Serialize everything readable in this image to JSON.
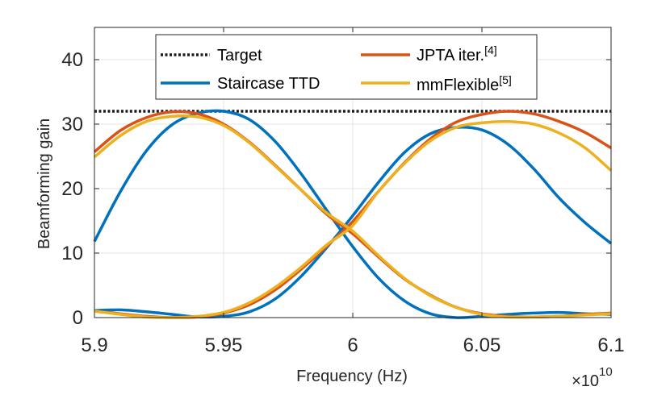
{
  "chart_data": {
    "type": "line",
    "title": "",
    "xlabel": "Frequency (Hz)",
    "ylabel": "Beamforming gain",
    "x_exponent_base": "×10",
    "x_exponent_power": "10",
    "xlim": [
      5.9,
      6.1
    ],
    "ylim": [
      0,
      45
    ],
    "xticks": [
      5.9,
      5.95,
      6.0,
      6.05,
      6.1
    ],
    "xtick_labels": [
      "5.9",
      "5.95",
      "6",
      "6.05",
      "6.1"
    ],
    "yticks": [
      0,
      10,
      20,
      30,
      40
    ],
    "ytick_labels": [
      "0",
      "10",
      "20",
      "30",
      "40"
    ],
    "grid": true,
    "legend_position": "top",
    "legend": [
      {
        "key": "target",
        "label": "Target",
        "sup": ""
      },
      {
        "key": "jpta",
        "label": "JPTA iter.",
        "sup": "[4]"
      },
      {
        "key": "staircase",
        "label": "Staircase TTD",
        "sup": ""
      },
      {
        "key": "mmflex",
        "label": "mmFlexible",
        "sup": "[5]"
      }
    ],
    "series": [
      {
        "key": "target",
        "name": "Target",
        "color": "#1a1a1a",
        "style": "dotted",
        "x": [
          5.9,
          6.1
        ],
        "y": [
          32,
          32
        ]
      },
      {
        "key": "staircase",
        "name": "Staircase TTD",
        "color": "#0072bd",
        "style": "solid",
        "curves": [
          {
            "x": [
              5.9,
              5.91,
              5.92,
              5.93,
              5.94,
              5.95,
              5.96,
              5.97,
              5.98,
              5.99,
              6.0,
              6.01,
              6.02,
              6.03,
              6.04,
              6.05,
              6.06,
              6.07,
              6.08,
              6.09,
              6.1
            ],
            "y": [
              11.8,
              19.5,
              25.8,
              29.9,
              31.7,
              32.0,
              30.7,
              27.3,
              22.3,
              16.6,
              11.0,
              6.1,
              2.6,
              0.6,
              0.0,
              0.2,
              0.5,
              0.7,
              0.8,
              0.6,
              0.5
            ]
          },
          {
            "x": [
              5.9,
              5.91,
              5.92,
              5.93,
              5.94,
              5.95,
              5.96,
              5.97,
              5.98,
              5.99,
              6.0,
              6.01,
              6.02,
              6.03,
              6.04,
              6.05,
              6.06,
              6.07,
              6.08,
              6.09,
              6.1
            ],
            "y": [
              1.1,
              1.2,
              0.9,
              0.5,
              0.1,
              0.2,
              0.9,
              2.9,
              6.4,
              10.9,
              15.8,
              21.0,
              25.6,
              28.5,
              29.5,
              29.1,
              26.9,
              23.1,
              18.5,
              14.7,
              11.5
            ]
          }
        ]
      },
      {
        "key": "jpta",
        "name": "JPTA iter.",
        "color": "#d95319",
        "style": "solid",
        "curves": [
          {
            "x": [
              5.9,
              5.91,
              5.92,
              5.93,
              5.94,
              5.95,
              5.96,
              5.97,
              5.98,
              5.99,
              6.0,
              6.01,
              6.02,
              6.03,
              6.04,
              6.05,
              6.06,
              6.07,
              6.08,
              6.09,
              6.1
            ],
            "y": [
              25.7,
              29.0,
              31.0,
              31.9,
              31.6,
              30.0,
              27.2,
              23.6,
              19.8,
              16.0,
              13.0,
              9.4,
              6.0,
              3.5,
              1.6,
              0.6,
              0.2,
              0.1,
              0.2,
              0.5,
              0.7
            ]
          },
          {
            "x": [
              5.9,
              5.91,
              5.92,
              5.93,
              5.94,
              5.95,
              5.96,
              5.97,
              5.98,
              5.99,
              6.0,
              6.01,
              6.02,
              6.03,
              6.04,
              6.05,
              6.06,
              6.07,
              6.08,
              6.09,
              6.1
            ],
            "y": [
              1.0,
              0.6,
              0.2,
              0.0,
              0.1,
              0.7,
              2.0,
              4.3,
              7.5,
              11.1,
              14.9,
              19.6,
              24.0,
              27.7,
              30.3,
              31.5,
              32.0,
              31.6,
              30.4,
              28.7,
              26.3
            ]
          }
        ]
      },
      {
        "key": "mmflex",
        "name": "mmFlexible",
        "color": "#edb120",
        "style": "solid",
        "curves": [
          {
            "x": [
              5.9,
              5.91,
              5.92,
              5.93,
              5.94,
              5.95,
              5.96,
              5.97,
              5.98,
              5.99,
              6.0,
              6.01,
              6.02,
              6.03,
              6.04,
              6.05,
              6.06,
              6.07,
              6.08,
              6.09,
              6.1
            ],
            "y": [
              24.9,
              28.2,
              30.4,
              31.2,
              31.1,
              29.8,
              27.1,
              23.5,
              19.8,
              16.2,
              13.4,
              9.6,
              6.1,
              3.4,
              1.6,
              0.5,
              0.1,
              0.1,
              0.2,
              0.4,
              0.6
            ]
          },
          {
            "x": [
              5.9,
              5.91,
              5.92,
              5.93,
              5.94,
              5.95,
              5.96,
              5.97,
              5.98,
              5.99,
              6.0,
              6.01,
              6.02,
              6.03,
              6.04,
              6.05,
              6.06,
              6.07,
              6.08,
              6.09,
              6.1
            ],
            "y": [
              1.0,
              0.5,
              0.1,
              0.0,
              0.2,
              0.8,
              2.3,
              4.7,
              7.8,
              11.3,
              14.3,
              19.6,
              23.9,
              27.4,
              29.5,
              30.2,
              30.4,
              30.0,
              28.6,
              26.3,
              22.8
            ]
          }
        ]
      }
    ]
  }
}
